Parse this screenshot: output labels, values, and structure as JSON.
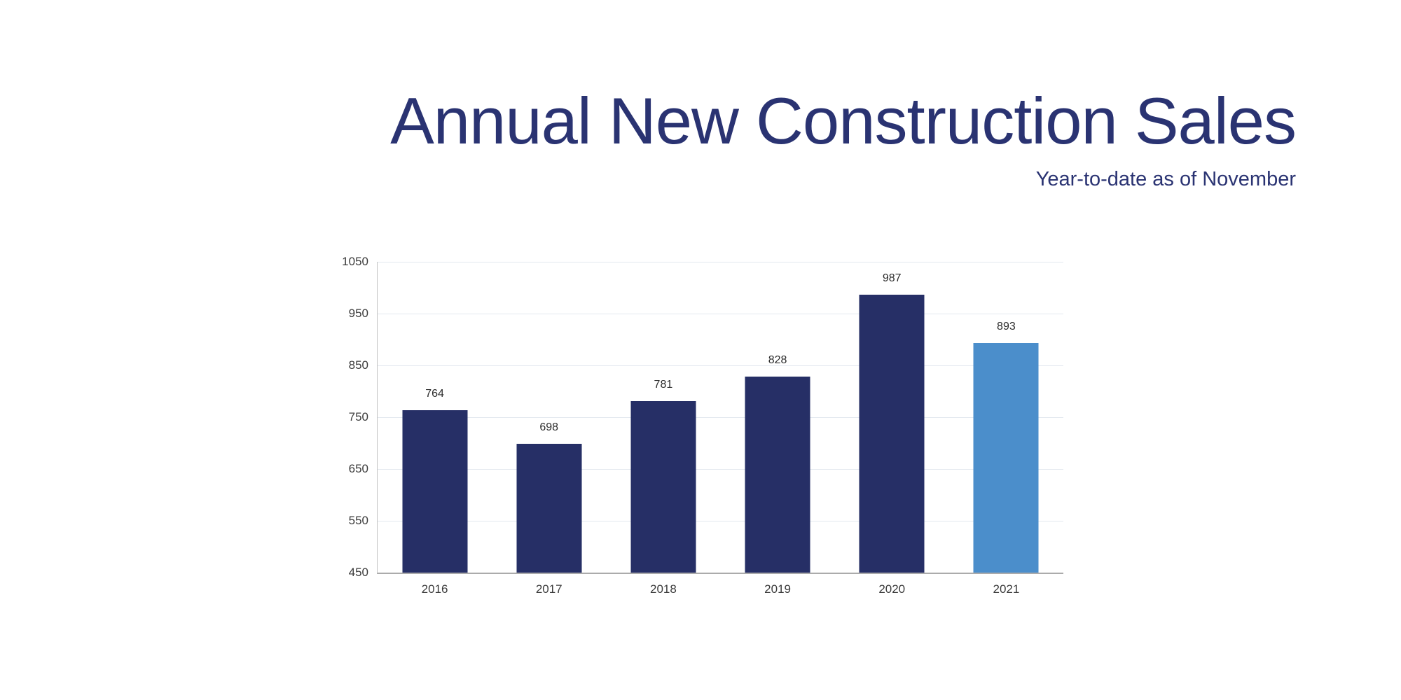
{
  "header": {
    "title": "Annual New Construction Sales",
    "subtitle": "Year-to-date as of November",
    "title_color": "#2A3372"
  },
  "chart_data": {
    "type": "bar",
    "title": "Annual New Construction Sales",
    "subtitle": "Year-to-date as of November",
    "categories": [
      "2016",
      "2017",
      "2018",
      "2019",
      "2020",
      "2021"
    ],
    "values": [
      764,
      698,
      781,
      828,
      987,
      893
    ],
    "value_labels": [
      "764",
      "698",
      "781",
      "828",
      "987",
      "893"
    ],
    "xlabel": "",
    "ylabel": "",
    "ylim": [
      450,
      1050
    ],
    "yticks": [
      1050,
      950,
      850,
      750,
      650,
      550,
      450
    ],
    "grid": true,
    "legend": false,
    "highlight_index": 5,
    "bar_colors": {
      "default": "#262F66",
      "highlight": "#4B8ECB"
    },
    "gridline_color": "#E3E8EF",
    "axis_line_color": "#ABABAB",
    "tick_label_color": "#3B3B3B"
  }
}
